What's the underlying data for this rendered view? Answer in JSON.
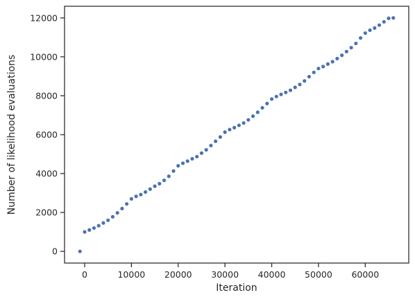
{
  "chart_data": {
    "type": "scatter",
    "title": "",
    "xlabel": "Iteration",
    "ylabel": "Number of likelihood evaluations",
    "xlim": [
      -4300,
      69300
    ],
    "ylim": [
      -600,
      12600
    ],
    "xticks": [
      0,
      10000,
      20000,
      30000,
      40000,
      50000,
      60000
    ],
    "xtick_labels": [
      "0",
      "10000",
      "20000",
      "30000",
      "40000",
      "50000",
      "60000"
    ],
    "yticks": [
      0,
      2000,
      4000,
      6000,
      8000,
      10000,
      12000
    ],
    "ytick_labels": [
      "0",
      "2000",
      "4000",
      "6000",
      "8000",
      "10000",
      "12000"
    ],
    "grid": false,
    "marker_color": "#4c72b0",
    "series": [
      {
        "x": [
          -1000,
          0,
          1000,
          2000,
          3000,
          4000,
          5000,
          6000,
          7000,
          8000,
          9000,
          10000,
          11000,
          12000,
          13000,
          14000,
          15000,
          16000,
          17000,
          18000,
          19000,
          20000,
          21000,
          22000,
          23000,
          24000,
          25000,
          26000,
          27000,
          28000,
          29000,
          30000,
          31000,
          32000,
          33000,
          34000,
          35000,
          36000,
          37000,
          38000,
          39000,
          40000,
          41000,
          42000,
          43000,
          44000,
          45000,
          46000,
          47000,
          48000,
          49000,
          50000,
          51000,
          52000,
          53000,
          54000,
          55000,
          56000,
          57000,
          58000,
          59000,
          60000,
          61000,
          62000,
          63000,
          64000,
          65000,
          66000
        ],
        "y": [
          0,
          1000,
          1100,
          1200,
          1320,
          1460,
          1600,
          1780,
          1980,
          2200,
          2440,
          2700,
          2830,
          2920,
          3050,
          3200,
          3350,
          3480,
          3650,
          3860,
          4130,
          4400,
          4530,
          4640,
          4760,
          4870,
          5050,
          5220,
          5440,
          5660,
          5880,
          6130,
          6260,
          6360,
          6480,
          6600,
          6760,
          6950,
          7150,
          7380,
          7600,
          7830,
          7960,
          8070,
          8170,
          8280,
          8430,
          8580,
          8760,
          8980,
          9200,
          9400,
          9500,
          9630,
          9750,
          9910,
          10080,
          10270,
          10470,
          10690,
          10970,
          11220,
          11370,
          11480,
          11630,
          11800,
          11980,
          12000
        ]
      }
    ]
  }
}
